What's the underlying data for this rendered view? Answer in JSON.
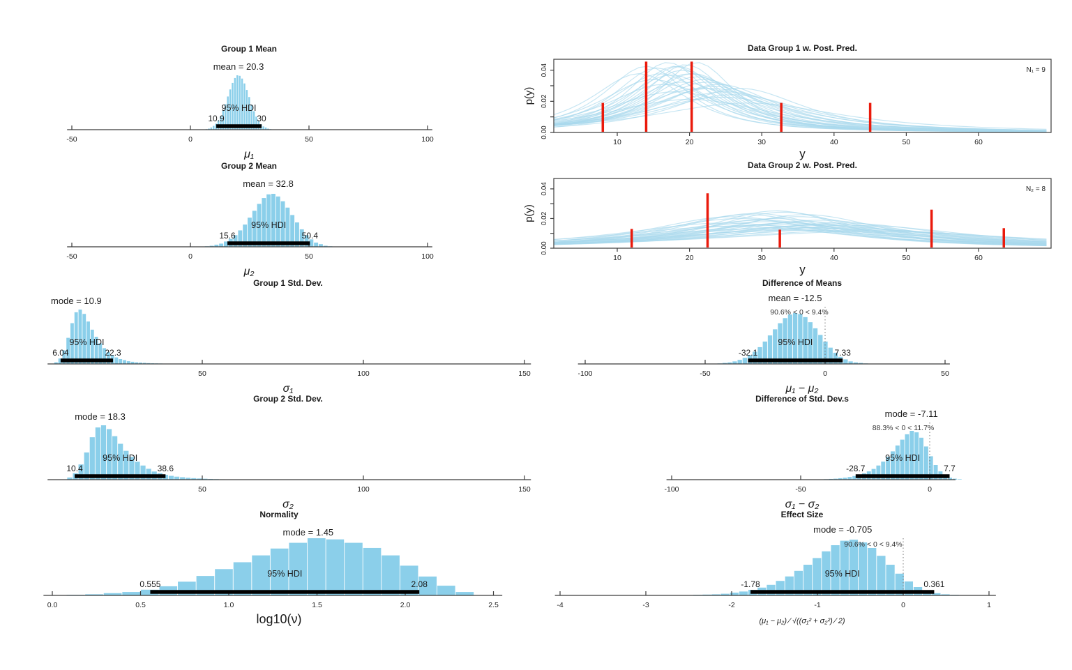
{
  "colors": {
    "histogram_fill": "#8BCFEA",
    "hdi_bar": "#000000",
    "data_point_red": "#EA1A0C",
    "posterior_curve": "#A9D9EC",
    "axis": "#3a3a3a",
    "text": "#1a1a1a",
    "pct_text": "#333333",
    "background": "#ffffff"
  },
  "chart_data": [
    {
      "type": "histogram",
      "title": "Group 1 Mean",
      "stat_label": "mean = 20.3",
      "stat_value": 20.3,
      "pct_label": null,
      "hdi": {
        "label": "95% HDI",
        "low": 10.9,
        "high": 30,
        "low_label": "10.9",
        "high_label": "30"
      },
      "xlabel": "μ₁",
      "xticks": [
        {
          "v": -50,
          "label": "-50"
        },
        {
          "v": 0,
          "label": "0"
        },
        {
          "v": 50,
          "label": "50"
        },
        {
          "v": 100,
          "label": "100"
        }
      ],
      "xlim": [
        -52,
        102
      ],
      "zero_line": false,
      "bins": {
        "x0": 6.3,
        "width": 1.0,
        "rel_heights": [
          0.01,
          0.02,
          0.04,
          0.07,
          0.11,
          0.17,
          0.25,
          0.35,
          0.47,
          0.61,
          0.74,
          0.86,
          0.95,
          1,
          0.99,
          0.94,
          0.85,
          0.73,
          0.6,
          0.46,
          0.34,
          0.24,
          0.16,
          0.1,
          0.06,
          0.04,
          0.02,
          0.01
        ]
      }
    },
    {
      "type": "histogram",
      "title": "Group 2 Mean",
      "stat_label": "mean = 32.8",
      "stat_value": 32.8,
      "pct_label": null,
      "hdi": {
        "label": "95% HDI",
        "low": 15.6,
        "high": 50.4,
        "low_label": "15.6",
        "high_label": "50.4"
      },
      "xlabel": "μ₂",
      "xticks": [
        {
          "v": -50,
          "label": "-50"
        },
        {
          "v": 0,
          "label": "0"
        },
        {
          "v": 50,
          "label": "50"
        },
        {
          "v": 100,
          "label": "100"
        }
      ],
      "xlim": [
        -52,
        102
      ],
      "zero_line": false,
      "bins": {
        "x0": 6.0,
        "width": 2.0,
        "rel_heights": [
          0.01,
          0.02,
          0.04,
          0.06,
          0.1,
          0.15,
          0.22,
          0.31,
          0.42,
          0.55,
          0.68,
          0.81,
          0.92,
          0.99,
          1,
          0.95,
          0.86,
          0.74,
          0.6,
          0.46,
          0.33,
          0.22,
          0.14,
          0.08,
          0.05,
          0.02,
          0.01
        ]
      }
    },
    {
      "type": "histogram",
      "title": "Group 1 Std. Dev.",
      "stat_label": "mode = 10.9",
      "stat_value": 10.9,
      "pct_label": null,
      "hdi": {
        "label": "95% HDI",
        "low": 6.04,
        "high": 22.3,
        "low_label": "6.04",
        "high_label": "22.3"
      },
      "xlabel": "σ₁",
      "xticks": [
        {
          "v": 50,
          "label": "50"
        },
        {
          "v": 100,
          "label": "100"
        },
        {
          "v": 150,
          "label": "150"
        }
      ],
      "xlim": [
        2,
        152
      ],
      "zero_line": false,
      "bins": {
        "x0": 4.0,
        "width": 1.25,
        "rel_heights": [
          0.03,
          0.1,
          0.25,
          0.48,
          0.75,
          0.95,
          1,
          0.92,
          0.78,
          0.63,
          0.5,
          0.38,
          0.29,
          0.22,
          0.16,
          0.12,
          0.09,
          0.07,
          0.05,
          0.04,
          0.03,
          0.025,
          0.02,
          0.015,
          0.012,
          0.01,
          0.008,
          0.006
        ]
      }
    },
    {
      "type": "histogram",
      "title": "Group 2 Std. Dev.",
      "stat_label": "mode = 18.3",
      "stat_value": 18.3,
      "pct_label": null,
      "hdi": {
        "label": "95% HDI",
        "low": 10.4,
        "high": 38.6,
        "low_label": "10.4",
        "high_label": "38.6"
      },
      "xlabel": "σ₂",
      "xticks": [
        {
          "v": 50,
          "label": "50"
        },
        {
          "v": 100,
          "label": "100"
        },
        {
          "v": 150,
          "label": "150"
        }
      ],
      "xlim": [
        2,
        152
      ],
      "zero_line": false,
      "bins": {
        "x0": 8.0,
        "width": 1.75,
        "rel_heights": [
          0.04,
          0.12,
          0.28,
          0.5,
          0.78,
          0.96,
          1,
          0.93,
          0.8,
          0.66,
          0.53,
          0.42,
          0.33,
          0.26,
          0.2,
          0.15,
          0.12,
          0.09,
          0.07,
          0.055,
          0.045,
          0.035,
          0.028,
          0.022,
          0.017,
          0.013,
          0.01,
          0.007
        ]
      }
    },
    {
      "type": "histogram",
      "title": "Normality",
      "stat_label": "mode = 1.45",
      "stat_value": 1.45,
      "pct_label": null,
      "hdi": {
        "label": "95% HDI",
        "low": 0.555,
        "high": 2.08,
        "low_label": "0.555",
        "high_label": "2.08"
      },
      "xlabel": "log10(ν)",
      "xticks": [
        {
          "v": 0,
          "label": "0.0"
        },
        {
          "v": 0.5,
          "label": "0.5"
        },
        {
          "v": 1,
          "label": "1.0"
        },
        {
          "v": 1.5,
          "label": "1.5"
        },
        {
          "v": 2,
          "label": "2.0"
        },
        {
          "v": 2.5,
          "label": "2.5"
        }
      ],
      "xlim": [
        -0.05,
        2.55
      ],
      "zero_line": false,
      "bins": {
        "x0": 0.08,
        "width": 0.105,
        "rel_heights": [
          0.01,
          0.02,
          0.04,
          0.06,
          0.1,
          0.16,
          0.24,
          0.34,
          0.46,
          0.58,
          0.7,
          0.82,
          0.92,
          1,
          0.98,
          0.92,
          0.83,
          0.7,
          0.52,
          0.33,
          0.17,
          0.06
        ]
      }
    },
    {
      "type": "posterior_predictive",
      "title": "Data Group 1 w. Post. Pred.",
      "n_label": "N₁ = 9",
      "xlabel": "y",
      "ylabel": "p(y)",
      "xticks": [
        {
          "v": 10,
          "label": "10"
        },
        {
          "v": 20,
          "label": "20"
        },
        {
          "v": 30,
          "label": "30"
        },
        {
          "v": 40,
          "label": "40"
        },
        {
          "v": 50,
          "label": "50"
        },
        {
          "v": 60,
          "label": "60"
        }
      ],
      "yticks": [
        {
          "v": 0,
          "label": "0.00"
        },
        {
          "v": 0.01,
          "label": ""
        },
        {
          "v": 0.02,
          "label": "0.02"
        },
        {
          "v": 0.03,
          "label": ""
        },
        {
          "v": 0.04,
          "label": "0.04"
        }
      ],
      "xlim": [
        1,
        70
      ],
      "ylim": [
        0,
        0.047
      ],
      "data_points": [
        {
          "value": 8,
          "height": 0.019
        },
        {
          "value": 14,
          "height": 0.0455
        },
        {
          "value": 20.3,
          "height": 0.0455
        },
        {
          "value": 32.7,
          "height": 0.019
        },
        {
          "value": 45,
          "height": 0.019
        }
      ],
      "curves": [
        [
          14,
          8
        ],
        [
          16,
          9
        ],
        [
          18,
          8
        ],
        [
          20,
          9
        ],
        [
          22,
          10
        ],
        [
          24,
          11
        ],
        [
          17,
          7.5
        ],
        [
          19,
          8.5
        ],
        [
          21,
          9.5
        ],
        [
          23,
          12
        ],
        [
          15,
          10
        ],
        [
          25,
          13
        ],
        [
          18.5,
          8
        ],
        [
          20.5,
          9
        ],
        [
          26,
          14
        ],
        [
          13,
          9
        ],
        [
          22.5,
          10.5
        ],
        [
          19.5,
          7.8
        ],
        [
          16.5,
          11
        ],
        [
          21.5,
          12
        ],
        [
          24.5,
          15
        ],
        [
          17.5,
          9.2
        ],
        [
          23.5,
          11.5
        ],
        [
          20,
          16
        ],
        [
          18,
          13
        ],
        [
          27,
          12
        ],
        [
          15.5,
          8.2
        ],
        [
          28,
          18
        ],
        [
          21,
          7.2
        ],
        [
          19,
          10.5
        ]
      ]
    },
    {
      "type": "posterior_predictive",
      "title": "Data Group 2 w. Post. Pred.",
      "n_label": "N₂ = 8",
      "xlabel": "y",
      "ylabel": "p(y)",
      "xticks": [
        {
          "v": 10,
          "label": "10"
        },
        {
          "v": 20,
          "label": "20"
        },
        {
          "v": 30,
          "label": "30"
        },
        {
          "v": 40,
          "label": "40"
        },
        {
          "v": 50,
          "label": "50"
        },
        {
          "v": 60,
          "label": "60"
        }
      ],
      "yticks": [
        {
          "v": 0,
          "label": "0.00"
        },
        {
          "v": 0.01,
          "label": ""
        },
        {
          "v": 0.02,
          "label": "0.02"
        },
        {
          "v": 0.03,
          "label": ""
        },
        {
          "v": 0.04,
          "label": "0.04"
        }
      ],
      "xlim": [
        1,
        70
      ],
      "ylim": [
        0,
        0.047
      ],
      "data_points": [
        {
          "value": 12,
          "height": 0.013
        },
        {
          "value": 22.5,
          "height": 0.037
        },
        {
          "value": 32.5,
          "height": 0.0125
        },
        {
          "value": 53.5,
          "height": 0.026
        },
        {
          "value": 63.5,
          "height": 0.0135
        }
      ],
      "curves": [
        [
          26,
          16
        ],
        [
          30,
          18
        ],
        [
          34,
          20
        ],
        [
          38,
          22
        ],
        [
          28,
          15
        ],
        [
          32,
          17
        ],
        [
          36,
          19
        ],
        [
          40,
          24
        ],
        [
          25,
          20
        ],
        [
          35,
          16
        ],
        [
          42,
          26
        ],
        [
          29,
          22
        ],
        [
          33,
          14
        ],
        [
          37,
          25
        ],
        [
          31,
          19
        ],
        [
          44,
          28
        ],
        [
          27,
          17
        ],
        [
          39,
          21
        ],
        [
          34,
          24
        ],
        [
          30,
          26
        ],
        [
          45,
          30
        ],
        [
          32,
          13.5
        ],
        [
          38,
          18
        ],
        [
          26,
          23
        ],
        [
          41,
          20
        ],
        [
          35,
          28
        ],
        [
          29,
          14.5
        ],
        [
          43,
          22
        ],
        [
          33,
          21
        ],
        [
          36,
          15
        ]
      ]
    },
    {
      "type": "histogram",
      "title": "Difference of Means",
      "stat_label": "mean = -12.5",
      "stat_value": -12.5,
      "pct_label": "90.6% < 0 < 9.4%",
      "hdi": {
        "label": "95% HDI",
        "low": -32.1,
        "high": 7.33,
        "low_label": "-32.1",
        "high_label": "7.33"
      },
      "xlabel": "μ₁ − μ₂",
      "xticks": [
        {
          "v": -100,
          "label": "-100"
        },
        {
          "v": -50,
          "label": "-50"
        },
        {
          "v": 0,
          "label": "0"
        },
        {
          "v": 50,
          "label": "50"
        }
      ],
      "xlim": [
        -103,
        52
      ],
      "zero_line": true,
      "bins": {
        "x0": -45,
        "width": 2.1,
        "rel_heights": [
          0.01,
          0.02,
          0.03,
          0.05,
          0.08,
          0.12,
          0.17,
          0.24,
          0.33,
          0.44,
          0.56,
          0.68,
          0.8,
          0.9,
          0.97,
          1,
          0.98,
          0.92,
          0.82,
          0.7,
          0.57,
          0.44,
          0.32,
          0.22,
          0.14,
          0.09,
          0.05,
          0.03,
          0.02,
          0.01
        ]
      }
    },
    {
      "type": "histogram",
      "title": "Difference of Std. Dev.s",
      "stat_label": "mode = -7.11",
      "stat_value": -7.11,
      "pct_label": "88.3% < 0 < 11.7%",
      "hdi": {
        "label": "95% HDI",
        "low": -28.7,
        "high": 7.7,
        "low_label": "-28.7",
        "high_label": "7.7"
      },
      "xlabel": "σ₁ − σ₂",
      "xticks": [
        {
          "v": -100,
          "label": "-100"
        },
        {
          "v": -50,
          "label": "-50"
        },
        {
          "v": 0,
          "label": "0"
        }
      ],
      "xlim": [
        -102,
        10
      ],
      "zero_line": true,
      "bins": {
        "x0": -43,
        "width": 1.85,
        "rel_heights": [
          0.005,
          0.01,
          0.015,
          0.02,
          0.03,
          0.04,
          0.055,
          0.075,
          0.1,
          0.13,
          0.17,
          0.22,
          0.29,
          0.37,
          0.47,
          0.58,
          0.7,
          0.82,
          0.93,
          1,
          0.97,
          0.86,
          0.68,
          0.48,
          0.3,
          0.17,
          0.09,
          0.04,
          0.02,
          0.01
        ]
      }
    },
    {
      "type": "histogram",
      "title": "Effect Size",
      "stat_label": "mode = -0.705",
      "stat_value": -0.705,
      "pct_label": "90.6% < 0 < 9.4%",
      "hdi": {
        "label": "95% HDI",
        "low": -1.78,
        "high": 0.361,
        "low_label": "-1.78",
        "high_label": "0.361"
      },
      "xlabel": "(μ₁ − μ₂) ∕ √((σ₁² + σ₂²) ∕ 2)",
      "xticks": [
        {
          "v": -4,
          "label": "-4"
        },
        {
          "v": -3,
          "label": "-3"
        },
        {
          "v": -2,
          "label": "-2"
        },
        {
          "v": -1,
          "label": "-1"
        },
        {
          "v": 0,
          "label": "0"
        },
        {
          "v": 1,
          "label": "1"
        }
      ],
      "xlim": [
        -4.06,
        1.08
      ],
      "zero_line": true,
      "bins": {
        "x0": -2.45,
        "width": 0.107,
        "rel_heights": [
          0.01,
          0.015,
          0.02,
          0.03,
          0.05,
          0.07,
          0.1,
          0.14,
          0.19,
          0.26,
          0.34,
          0.44,
          0.55,
          0.67,
          0.79,
          0.9,
          0.98,
          1,
          0.95,
          0.85,
          0.71,
          0.55,
          0.39,
          0.25,
          0.15,
          0.08,
          0.04,
          0.02,
          0.01,
          0.005
        ]
      }
    }
  ]
}
